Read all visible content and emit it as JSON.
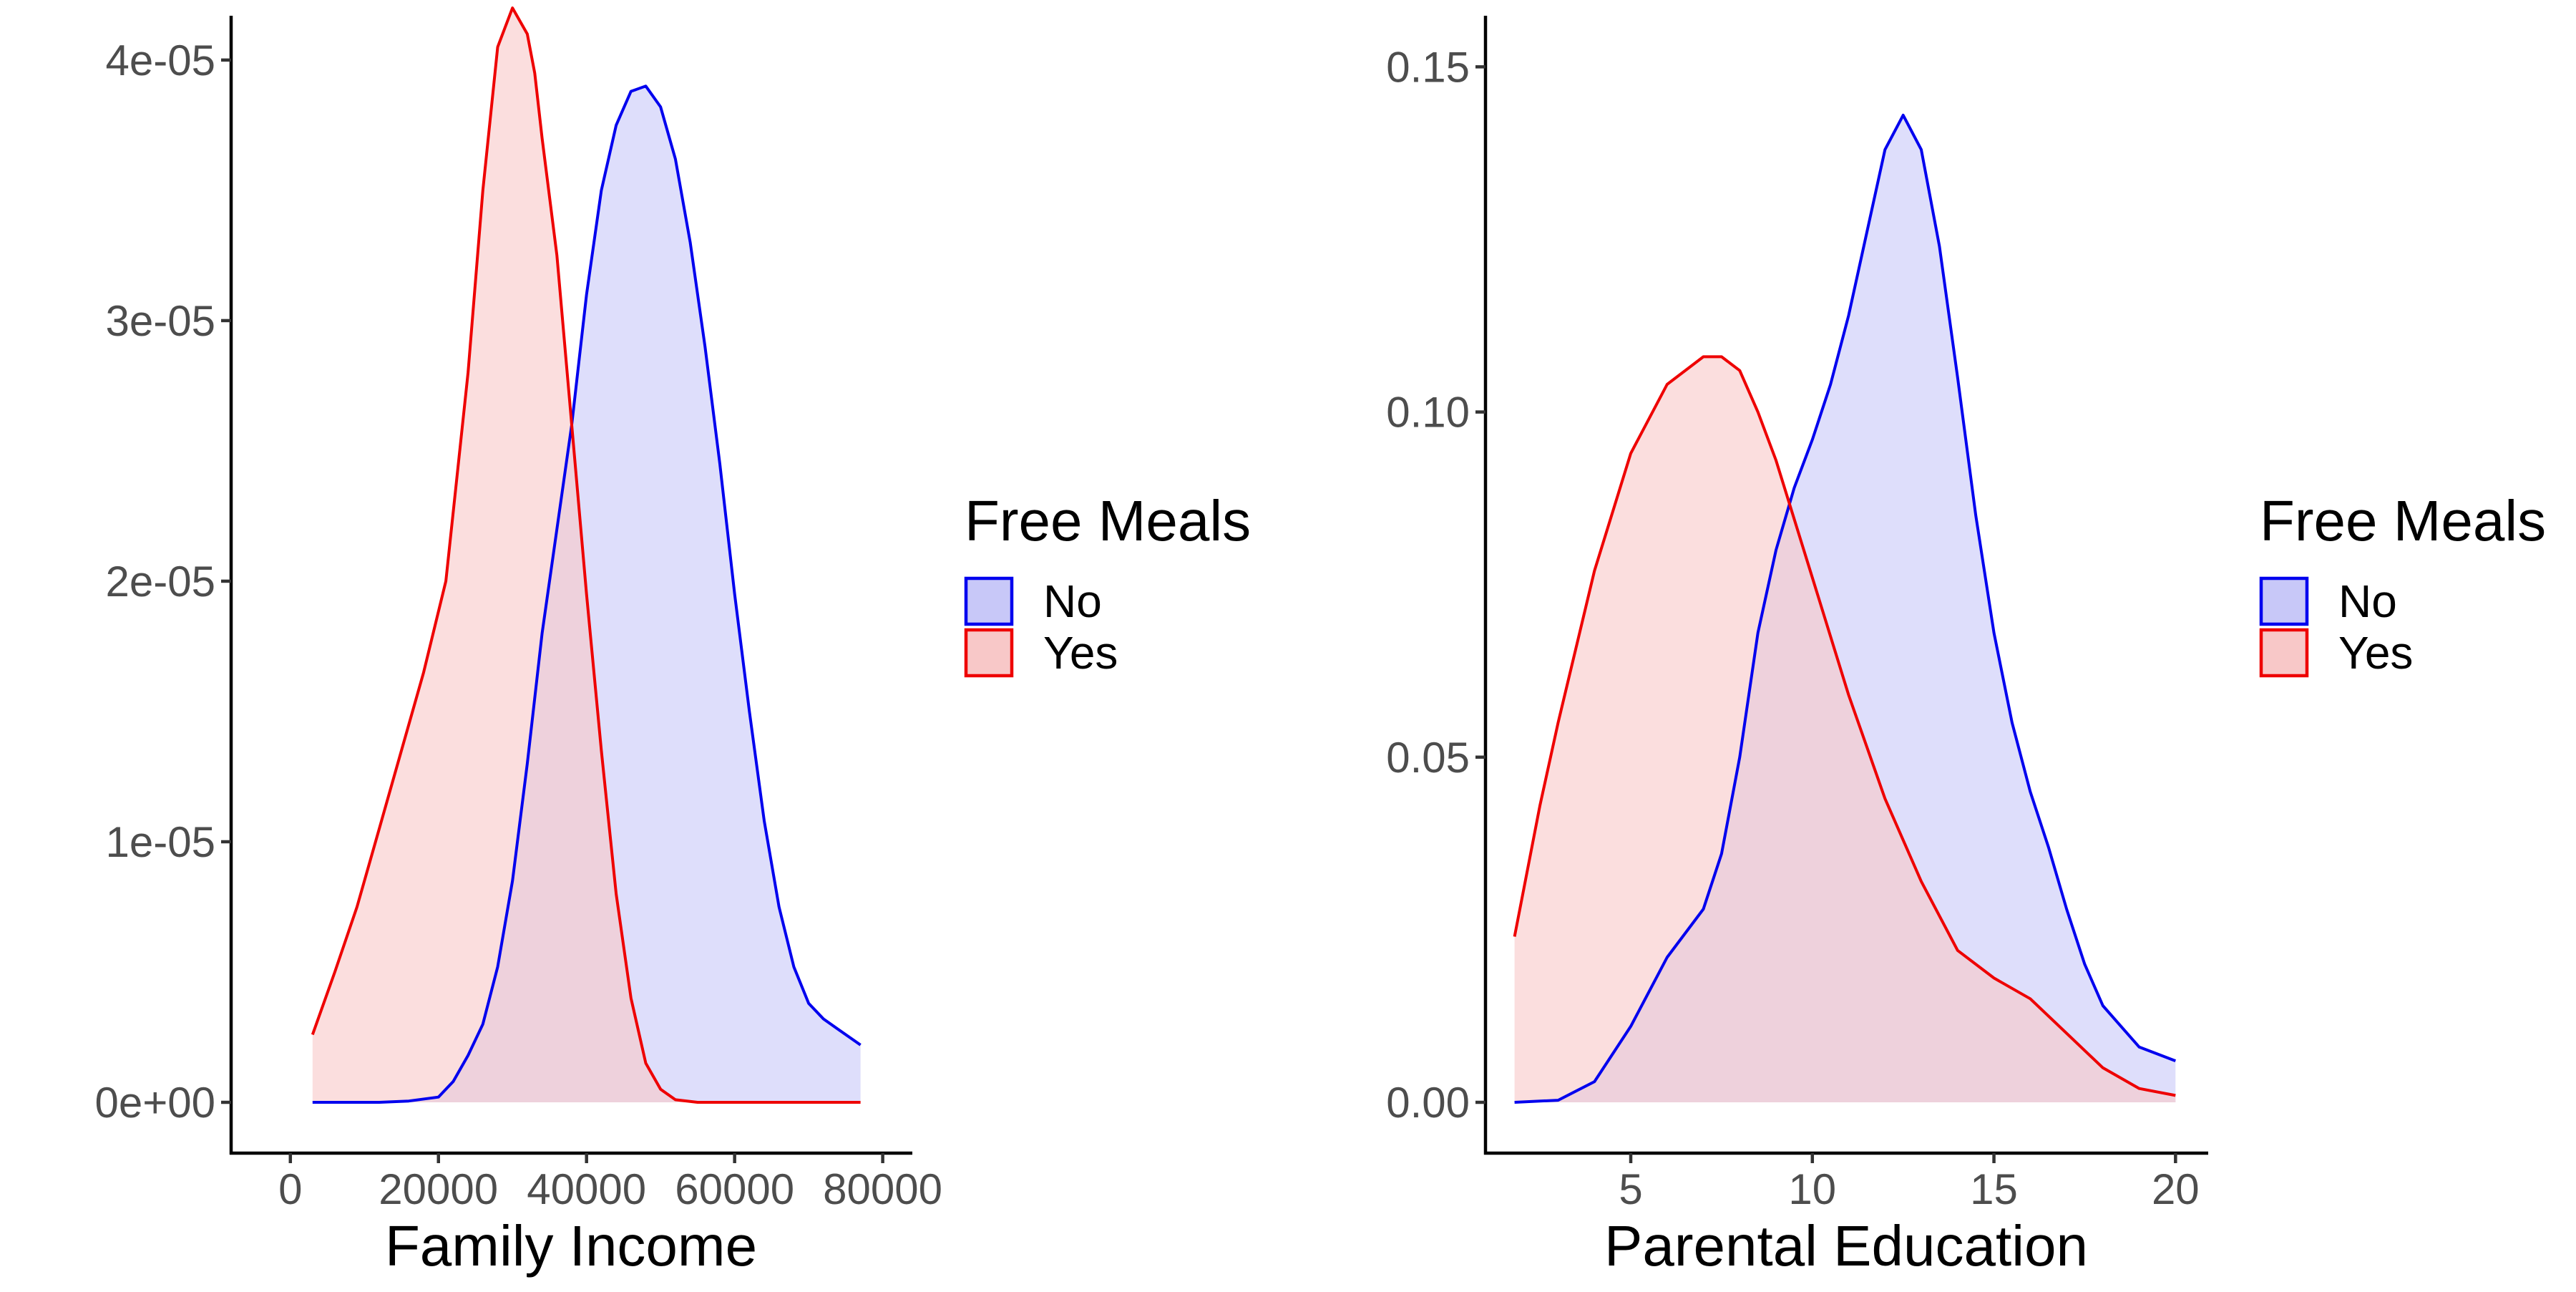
{
  "chart_data": [
    {
      "type": "area",
      "xlabel": "Family Income",
      "ylabel": "",
      "xlim": [
        0,
        80000
      ],
      "ylim": [
        0,
        4e-05
      ],
      "x_ticks": [
        0,
        20000,
        40000,
        60000,
        80000
      ],
      "x_tick_labels": [
        "0",
        "20000",
        "40000",
        "60000",
        "80000"
      ],
      "y_ticks": [
        0,
        1e-05,
        2e-05,
        3e-05,
        4e-05
      ],
      "y_tick_labels": [
        "0e+00",
        "1e-05",
        "2e-05",
        "3e-05",
        "4e-05"
      ],
      "grid": false,
      "legend": {
        "title": "Free Meals",
        "position": "right"
      },
      "series": [
        {
          "name": "No",
          "color": "#0000EE",
          "fill": "#C8C8F8",
          "x": [
            3000,
            8000,
            12000,
            16000,
            20000,
            22000,
            24000,
            26000,
            28000,
            30000,
            32000,
            34000,
            36000,
            38000,
            40000,
            42000,
            44000,
            46000,
            48000,
            50000,
            52000,
            54000,
            56000,
            58000,
            60000,
            62000,
            64000,
            66000,
            68000,
            70000,
            72000,
            74000,
            77000
          ],
          "y": [
            0,
            0,
            0,
            5e-08,
            2e-07,
            8e-07,
            1.8e-06,
            3e-06,
            5.2e-06,
            8.5e-06,
            1.3e-05,
            1.8e-05,
            2.2e-05,
            2.6e-05,
            3.1e-05,
            3.5e-05,
            3.75e-05,
            3.88e-05,
            3.9e-05,
            3.82e-05,
            3.62e-05,
            3.3e-05,
            2.9e-05,
            2.45e-05,
            1.95e-05,
            1.5e-05,
            1.08e-05,
            7.5e-06,
            5.2e-06,
            3.8e-06,
            3.2e-06,
            2.8e-06,
            2.2e-06
          ]
        },
        {
          "name": "Yes",
          "color": "#EE0000",
          "fill": "#F8C8C8",
          "x": [
            3000,
            6000,
            9000,
            12000,
            15000,
            18000,
            21000,
            24000,
            26000,
            28000,
            30000,
            32000,
            33000,
            34000,
            36000,
            38000,
            40000,
            42000,
            44000,
            46000,
            48000,
            50000,
            52000,
            55000,
            60000,
            65000,
            70000,
            77000
          ],
          "y": [
            2.6e-06,
            5e-06,
            7.5e-06,
            1.05e-05,
            1.35e-05,
            1.65e-05,
            2e-05,
            2.8e-05,
            3.5e-05,
            4.05e-05,
            4.2e-05,
            4.1e-05,
            3.95e-05,
            3.7e-05,
            3.25e-05,
            2.6e-05,
            1.95e-05,
            1.35e-05,
            8e-06,
            4e-06,
            1.5e-06,
            5e-07,
            1e-07,
            0,
            0,
            0,
            0,
            0
          ]
        }
      ]
    },
    {
      "type": "area",
      "xlabel": "Parental Education",
      "ylabel": "",
      "xlim": [
        1.8,
        20
      ],
      "ylim": [
        0,
        0.15
      ],
      "x_ticks": [
        5,
        10,
        15,
        20
      ],
      "x_tick_labels": [
        "5",
        "10",
        "15",
        "20"
      ],
      "y_ticks": [
        0,
        0.05,
        0.1,
        0.15
      ],
      "y_tick_labels": [
        "0.00",
        "0.05",
        "0.10",
        "0.15"
      ],
      "grid": false,
      "legend": {
        "title": "Free Meals",
        "position": "right"
      },
      "series": [
        {
          "name": "No",
          "color": "#0000EE",
          "fill": "#C8C8F8",
          "x": [
            1.8,
            3,
            4,
            5,
            6,
            7,
            7.5,
            8,
            8.5,
            9,
            9.5,
            10,
            10.5,
            11,
            11.5,
            12,
            12.5,
            13,
            13.5,
            14,
            14.5,
            15,
            15.5,
            16,
            16.5,
            17,
            17.5,
            18,
            18.5,
            19,
            20
          ],
          "y": [
            0,
            0.0003,
            0.003,
            0.011,
            0.021,
            0.028,
            0.036,
            0.05,
            0.068,
            0.08,
            0.089,
            0.096,
            0.104,
            0.114,
            0.126,
            0.138,
            0.143,
            0.138,
            0.124,
            0.105,
            0.085,
            0.068,
            0.055,
            0.045,
            0.037,
            0.028,
            0.02,
            0.014,
            0.011,
            0.008,
            0.006
          ]
        },
        {
          "name": "Yes",
          "color": "#EE0000",
          "fill": "#F8C8C8",
          "x": [
            1.8,
            2.5,
            3,
            4,
            5,
            6,
            7,
            7.5,
            8,
            8.5,
            9,
            10,
            11,
            12,
            13,
            14,
            15,
            16,
            17,
            18,
            19,
            20
          ],
          "y": [
            0.024,
            0.043,
            0.055,
            0.077,
            0.094,
            0.104,
            0.108,
            0.108,
            0.106,
            0.1,
            0.093,
            0.076,
            0.059,
            0.044,
            0.032,
            0.022,
            0.018,
            0.015,
            0.01,
            0.005,
            0.002,
            0.001
          ]
        }
      ]
    }
  ]
}
